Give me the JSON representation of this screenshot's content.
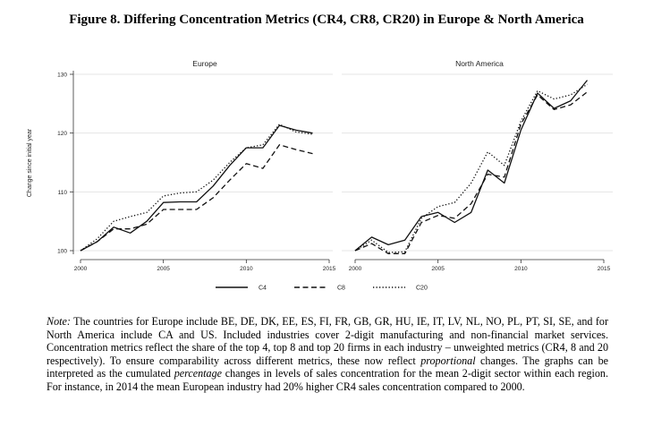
{
  "figure_title": "Figure 8. Differing Concentration Metrics (CR4, CR8, CR20) in Europe & North America",
  "chart_data": {
    "type": "line",
    "ylabel": "Change since initial year",
    "ylim": [
      100,
      130
    ],
    "yticks": [
      100,
      110,
      120,
      130
    ],
    "xlim": [
      2000,
      2015
    ],
    "xticks": [
      2000,
      2005,
      2010,
      2015
    ],
    "grid": true,
    "legend_position": "bottom",
    "legend": [
      {
        "key": "c4",
        "label": "C4",
        "style": "solid"
      },
      {
        "key": "c8",
        "label": "C8",
        "style": "dashed"
      },
      {
        "key": "c20",
        "label": "C20",
        "style": "dotted"
      }
    ],
    "x": [
      2000,
      2001,
      2002,
      2003,
      2004,
      2005,
      2006,
      2007,
      2008,
      2009,
      2010,
      2011,
      2012,
      2013,
      2014
    ],
    "panels": [
      {
        "title": "Europe",
        "series": [
          {
            "key": "c4",
            "values": [
              100,
              101.5,
              104,
              103,
              105,
              108.2,
              108.3,
              108.3,
              111,
              114.5,
              117.5,
              117.5,
              121.3,
              120.5,
              120
            ]
          },
          {
            "key": "c8",
            "values": [
              100,
              101.5,
              103.7,
              103.7,
              104.5,
              107,
              107,
              107,
              109,
              112,
              114.8,
              114,
              118,
              117.2,
              116.5
            ]
          },
          {
            "key": "c20",
            "values": [
              100,
              102,
              105,
              105.8,
              106.5,
              109.3,
              109.8,
              110,
              112,
              115,
              117.5,
              118,
              121.5,
              120.2,
              119.8
            ]
          }
        ]
      },
      {
        "title": "North America",
        "series": [
          {
            "key": "c4",
            "values": [
              100,
              102.3,
              101,
              101.8,
              105.8,
              106.5,
              104.8,
              106.5,
              113.7,
              111.5,
              120.5,
              126.8,
              124.2,
              125.5,
              129
            ]
          },
          {
            "key": "c8",
            "values": [
              100,
              101.2,
              99.5,
              99.5,
              104.8,
              106,
              105.5,
              108,
              113,
              112.5,
              121.5,
              126.5,
              124,
              124.8,
              127
            ]
          },
          {
            "key": "c20",
            "values": [
              100,
              101.8,
              99.7,
              99.8,
              105.5,
              107.5,
              108.2,
              111.5,
              116.8,
              114.5,
              122,
              127.2,
              125.8,
              126.5,
              128.3
            ]
          }
        ]
      }
    ]
  },
  "note": {
    "lead": "Note:",
    "p1": " The countries for Europe include BE, DE, DK, EE, ES, FI, FR, GB, GR, HU, IE, IT, LV, NL, NO, PL, PT, SI, SE, and for North America include CA and US. Included industries cover 2-digit manufacturing and non-financial market services. Concentration metrics reflect the share of the top 4, top 8 and top 20 firms in each industry – unweighted metrics (CR4, 8 and 20 respectively). To ensure comparability across different metrics, these now reflect ",
    "em1": "proportional",
    "p2": " changes. The graphs can be interpreted as the cumulated ",
    "em2": "percentage",
    "p3": " changes in levels of sales concentration for the mean 2-digit sector within each region. For instance, in 2014 the mean European industry had 20% higher CR4 sales concentration compared to 2000."
  }
}
